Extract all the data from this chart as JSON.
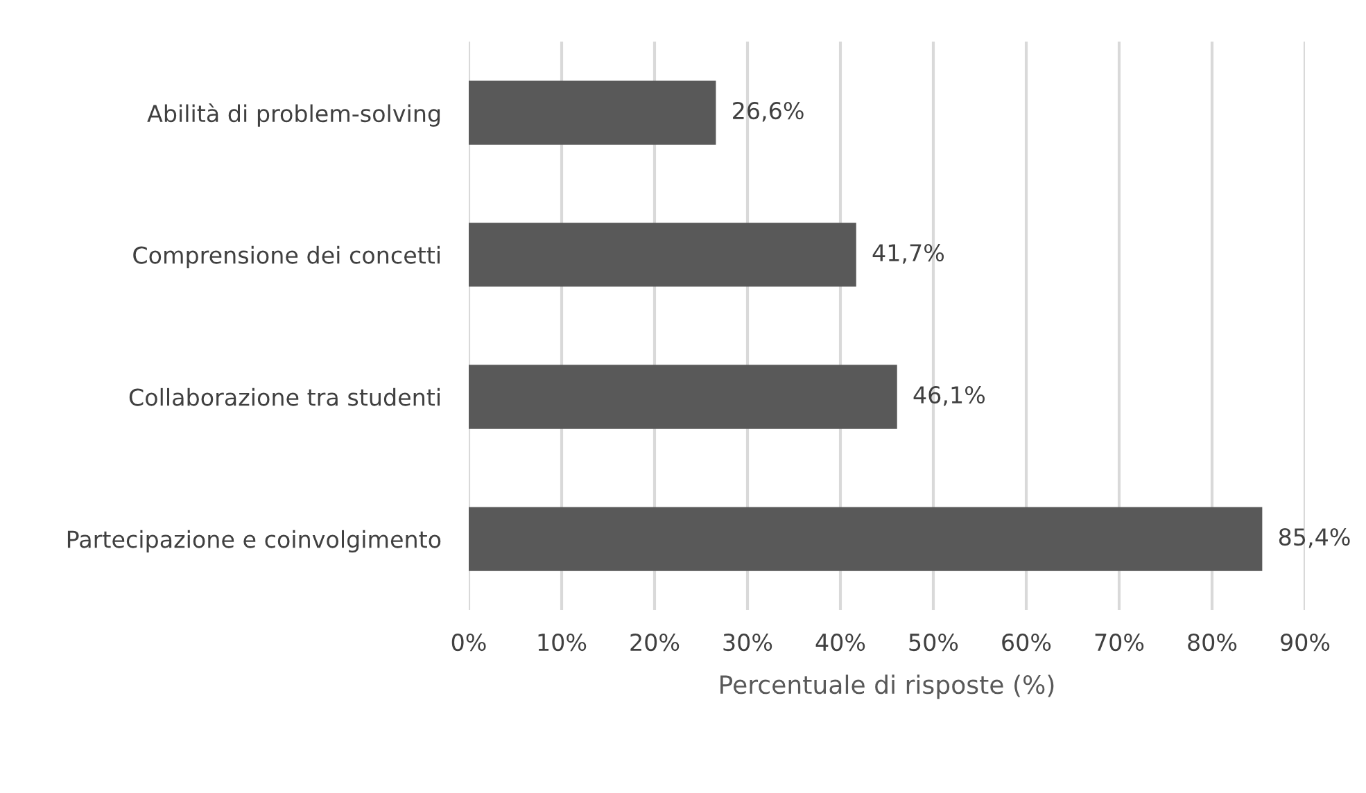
{
  "chart_data": {
    "type": "bar",
    "orientation": "horizontal",
    "categories": [
      "Abilità di problem-solving",
      "Comprensione dei concetti",
      "Collaborazione tra studenti",
      "Partecipazione e coinvolgimento"
    ],
    "values": [
      26.6,
      41.7,
      46.1,
      85.4
    ],
    "value_labels": [
      "26,6%",
      "41,7%",
      "46,1%",
      "85,4%"
    ],
    "color": "#595959",
    "xlabel": "Percentuale di risposte (%)",
    "xlim": [
      0,
      90
    ],
    "xticks": [
      {
        "value": 0,
        "label": "0%"
      },
      {
        "value": 10,
        "label": "10%"
      },
      {
        "value": 20,
        "label": "20%"
      },
      {
        "value": 30,
        "label": "30%"
      },
      {
        "value": 40,
        "label": "40%"
      },
      {
        "value": 50,
        "label": "50%"
      },
      {
        "value": 60,
        "label": "60%"
      },
      {
        "value": 70,
        "label": "70%"
      },
      {
        "value": 80,
        "label": "80%"
      },
      {
        "value": 90,
        "label": "90%"
      }
    ],
    "grid": "x"
  }
}
